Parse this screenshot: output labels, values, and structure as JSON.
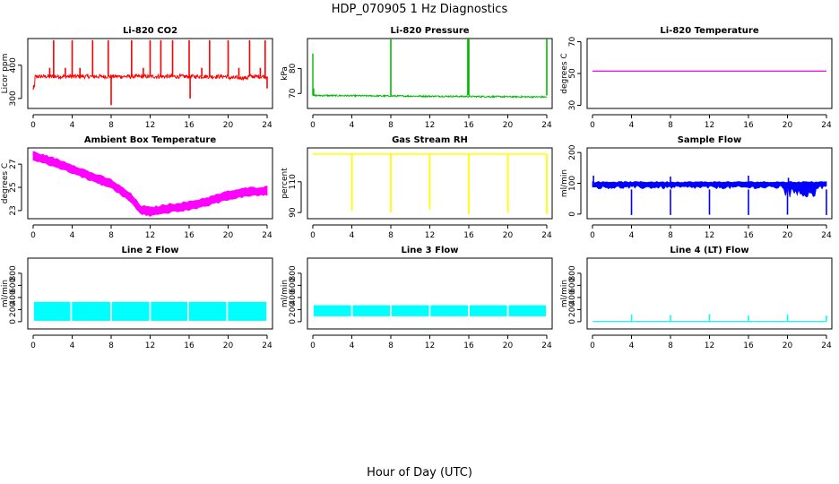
{
  "figure": {
    "title": "HDP_070905  1 Hz Diagnostics",
    "xlabel": "Hour of Day (UTC)"
  },
  "chart_data": [
    {
      "type": "line",
      "title": "Li-820 CO2",
      "ylabel": "Licor ppm",
      "color": "#ff0000",
      "xlim": [
        0,
        24
      ],
      "ylim": [
        270,
        480
      ],
      "xticks": [
        0,
        4,
        8,
        12,
        16,
        20,
        24
      ],
      "yticks": [
        300,
        400
      ],
      "series": [
        {
          "name": "CO2",
          "baseline": 366,
          "noise": 6,
          "start_dip": 320,
          "spikes_up": [
            [
              1.7,
              392
            ],
            [
              2.1,
              475
            ],
            [
              3.3,
              392
            ],
            [
              4.0,
              475
            ],
            [
              4.8,
              392
            ],
            [
              6.1,
              475
            ],
            [
              7.7,
              475
            ],
            [
              10.1,
              475
            ],
            [
              11.3,
              392
            ],
            [
              12.0,
              475
            ],
            [
              13.1,
              475
            ],
            [
              14.3,
              475
            ],
            [
              16.0,
              475
            ],
            [
              17.3,
              392
            ],
            [
              18.1,
              475
            ],
            [
              20.0,
              475
            ],
            [
              21.1,
              392
            ],
            [
              22.2,
              475
            ],
            [
              23.3,
              392
            ],
            [
              23.8,
              475
            ]
          ],
          "spikes_down": [
            [
              8.0,
              280
            ],
            [
              16.1,
              300
            ],
            [
              24.0,
              330
            ]
          ]
        }
      ]
    },
    {
      "type": "line",
      "title": "Li-820 Pressure",
      "ylabel": "kPa",
      "color": "#00bb00",
      "xlim": [
        0,
        24
      ],
      "ylim": [
        64,
        92
      ],
      "xticks": [
        0,
        4,
        8,
        12,
        16,
        20,
        24
      ],
      "yticks": [
        70,
        80
      ],
      "series": [
        {
          "name": "Pressure",
          "start": [
            86,
            72
          ],
          "level_start": 69.2,
          "level_end": 68.6,
          "noise": 0.3,
          "spikes_up": [
            [
              8.0,
              92
            ],
            [
              15.9,
              92
            ],
            [
              16.0,
              92
            ],
            [
              24.0,
              92
            ]
          ]
        }
      ]
    },
    {
      "type": "line",
      "title": "Li-820 Temperature",
      "ylabel": "degrees C",
      "color": "#ff00ff",
      "xlim": [
        0,
        24
      ],
      "ylim": [
        28,
        72
      ],
      "xticks": [
        0,
        4,
        8,
        12,
        16,
        20,
        24
      ],
      "yticks": [
        30,
        50,
        70
      ],
      "series": [
        {
          "name": "Temperature",
          "value": 51.5
        }
      ]
    },
    {
      "type": "line",
      "title": "Ambient Box Temperature",
      "ylabel": "degrees C",
      "color": "#ff00ff",
      "xlim": [
        0,
        24
      ],
      "ylim": [
        22.3,
        28.4
      ],
      "xticks": [
        0,
        4,
        8,
        12,
        16,
        20,
        24
      ],
      "yticks": [
        23,
        25,
        27
      ],
      "series": [
        {
          "name": "Ambient",
          "band": 0.55,
          "x": [
            0,
            2,
            4,
            6,
            8,
            10,
            11,
            12,
            14,
            16,
            18,
            20,
            22,
            24
          ],
          "y": [
            27.7,
            27.2,
            26.6,
            25.9,
            25.3,
            24.1,
            23.1,
            22.9,
            23.2,
            23.4,
            23.8,
            24.3,
            24.6,
            24.7
          ]
        }
      ]
    },
    {
      "type": "line",
      "title": "Gas Stream RH",
      "ylabel": "percent",
      "color": "#ffff00",
      "xlim": [
        0,
        24
      ],
      "ylim": [
        86,
        132
      ],
      "xticks": [
        0,
        4,
        8,
        12,
        16,
        20,
        24
      ],
      "yticks": [
        90,
        110
      ],
      "series": [
        {
          "name": "RH",
          "level": 128,
          "drops": [
            [
              4.0,
              91
            ],
            [
              8.0,
              90
            ],
            [
              12.0,
              92
            ],
            [
              16.0,
              89
            ],
            [
              20.0,
              90
            ],
            [
              24.0,
              89
            ]
          ]
        }
      ]
    },
    {
      "type": "line",
      "title": "Sample Flow",
      "ylabel": "ml/min",
      "color": "#0000ff",
      "xlim": [
        0,
        24
      ],
      "ylim": [
        -15,
        215
      ],
      "xticks": [
        0,
        4,
        8,
        12,
        16,
        20,
        24
      ],
      "yticks": [
        0,
        100,
        200
      ],
      "series": [
        {
          "name": "Sample",
          "upper": 102,
          "lower_min": 55,
          "spikes_up": [
            [
              0.1,
              125
            ],
            [
              8.0,
              122
            ],
            [
              16.0,
              125
            ],
            [
              20.1,
              118
            ]
          ],
          "drops": [
            [
              4.0,
              -3
            ],
            [
              8.0,
              -3
            ],
            [
              12.0,
              -2
            ],
            [
              16.0,
              -3
            ],
            [
              20.0,
              -2
            ],
            [
              24.0,
              -3
            ]
          ]
        }
      ]
    },
    {
      "type": "line",
      "title": "Line 2 Flow",
      "ylabel": "ml/min",
      "color": "#00ffff",
      "xlim": [
        0,
        24
      ],
      "ylim": [
        -120,
        1050
      ],
      "xticks": [
        0,
        4,
        8,
        12,
        16,
        20,
        24
      ],
      "yticks": [
        0,
        200,
        400,
        600,
        800
      ],
      "series": [
        {
          "name": "Line2",
          "upper": 320,
          "lower": 20,
          "gaps": [
            3.9,
            8.0,
            12.0,
            15.9,
            19.9
          ]
        }
      ]
    },
    {
      "type": "line",
      "title": "Line 3 Flow",
      "ylabel": "ml/min",
      "color": "#00ffff",
      "xlim": [
        0,
        24
      ],
      "ylim": [
        -120,
        1050
      ],
      "xticks": [
        0,
        4,
        8,
        12,
        16,
        20,
        24
      ],
      "yticks": [
        0,
        200,
        400,
        600,
        800
      ],
      "series": [
        {
          "name": "Line3",
          "upper": 265,
          "lower": 95,
          "gaps": [
            4.0,
            8.0,
            12.0,
            16.0,
            20.0
          ]
        }
      ]
    },
    {
      "type": "line",
      "title": "Line 4 (LT) Flow",
      "ylabel": "ml/min",
      "color": "#00ffff",
      "xlim": [
        0,
        24
      ],
      "ylim": [
        -120,
        1050
      ],
      "xticks": [
        0,
        4,
        8,
        12,
        16,
        20,
        24
      ],
      "yticks": [
        0,
        200,
        400,
        600,
        800
      ],
      "series": [
        {
          "name": "Line4",
          "level": 5,
          "spikes_up": [
            [
              4.0,
              120
            ],
            [
              8.0,
              110
            ],
            [
              12.0,
              125
            ],
            [
              16.0,
              100
            ],
            [
              20.0,
              120
            ],
            [
              24.0,
              100
            ]
          ]
        }
      ]
    }
  ]
}
